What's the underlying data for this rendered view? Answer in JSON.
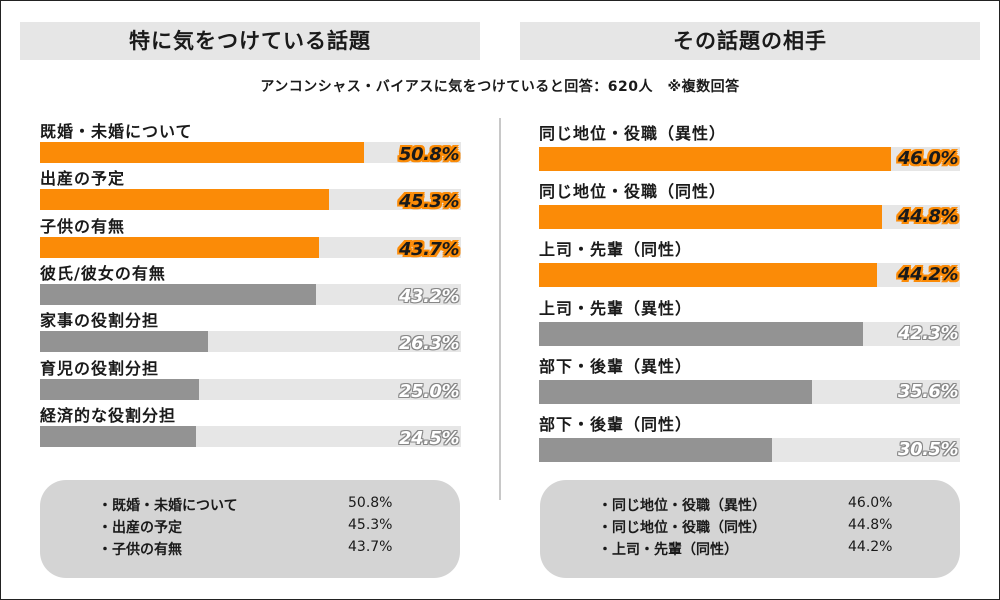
{
  "left_title": "特に気をつけている話題",
  "right_title": "その話題の相手",
  "subtitle": "アンコンシャス・バイアスに気をつけていると回答：620人　※複数回答",
  "colors": {
    "highlight": "#fb8b07",
    "normal": "#939393",
    "track": "#e6e6e6",
    "summary_bg": "#d4d4d4"
  },
  "chart_data": [
    {
      "type": "bar",
      "orientation": "horizontal",
      "title": "特に気をつけている話題",
      "categories": [
        "既婚・未婚について",
        "出産の予定",
        "子供の有無",
        "彼氏/彼女の有無",
        "家事の役割分担",
        "育児の役割分担",
        "経済的な役割分担"
      ],
      "values": [
        50.8,
        45.3,
        43.7,
        43.2,
        26.3,
        25.0,
        24.5
      ],
      "labels": [
        "50.8%",
        "45.3%",
        "43.7%",
        "43.2%",
        "26.3%",
        "25.0%",
        "24.5%"
      ],
      "highlight": [
        true,
        true,
        true,
        false,
        false,
        false,
        false
      ],
      "unit": "%",
      "xlim": [
        0,
        66
      ]
    },
    {
      "type": "bar",
      "orientation": "horizontal",
      "title": "その話題の相手",
      "categories": [
        "同じ地位・役職（異性）",
        "同じ地位・役職（同性）",
        "上司・先輩（同性）",
        "上司・先輩（異性）",
        "部下・後輩（異性）",
        "部下・後輩（同性）"
      ],
      "values": [
        46.0,
        44.8,
        44.2,
        42.3,
        35.6,
        30.5
      ],
      "labels": [
        "46.0%",
        "44.8%",
        "44.2%",
        "42.3%",
        "35.6%",
        "30.5%"
      ],
      "highlight": [
        true,
        true,
        true,
        false,
        false,
        false
      ],
      "unit": "%",
      "xlim": [
        0,
        55
      ]
    }
  ],
  "summary_left": [
    {
      "label": "・既婚・未婚について",
      "value": "50.8%"
    },
    {
      "label": "・出産の予定",
      "value": "45.3%"
    },
    {
      "label": "・子供の有無",
      "value": "43.7%"
    }
  ],
  "summary_right": [
    {
      "label": "・同じ地位・役職（異性）",
      "value": "46.0%"
    },
    {
      "label": "・同じ地位・役職（同性）",
      "value": "44.8%"
    },
    {
      "label": "・上司・先輩（同性）",
      "value": "44.2%"
    }
  ]
}
